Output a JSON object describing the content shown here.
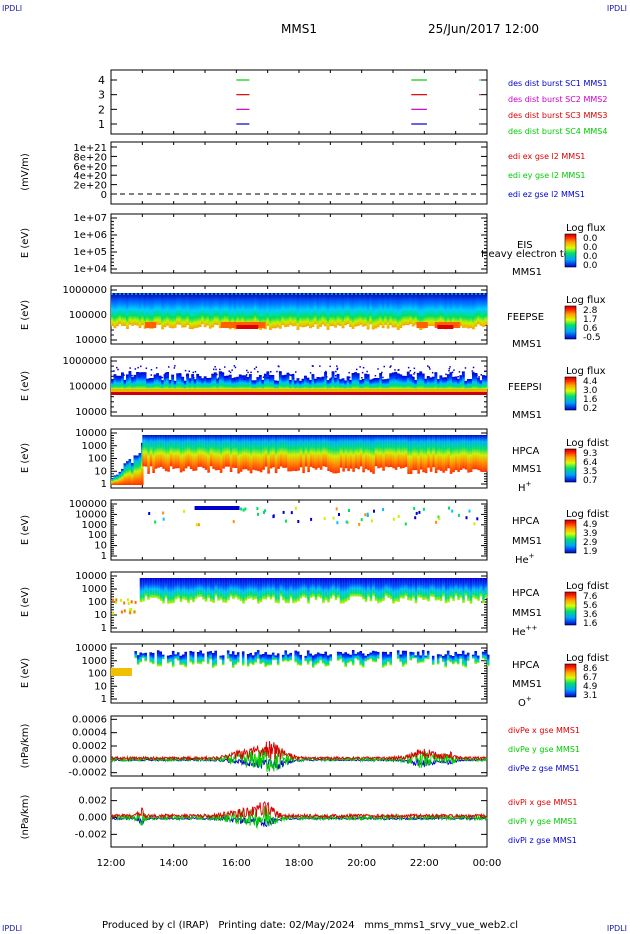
{
  "header": {
    "corner_label": "IPDLI",
    "spacecraft": "MMS1",
    "date_time": "25/Jun/2017 12:00"
  },
  "footer": {
    "text": "Produced by cl (IRAP)   Printing date: 02/May/2024   mms_mms1_srvy_vue_web2.cl"
  },
  "colors": {
    "blue": "#0000cc",
    "magenta": "#cc00cc",
    "red": "#dd0000",
    "green": "#00cc00"
  },
  "chart_data": [
    {
      "type": "line",
      "panel": "burst",
      "yticks": [
        "4",
        "3",
        "2",
        "1"
      ],
      "series": [
        {
          "name": "des dist burst SC1 MMS1",
          "color": "#0000cc",
          "level": 1,
          "intervals": [
            [
              "16:00",
              "16:25"
            ],
            [
              "21:35",
              "22:05"
            ],
            [
              "23:45",
              "23:48"
            ]
          ]
        },
        {
          "name": "des dist burst SC2 MMS2",
          "color": "#cc00cc",
          "level": 2,
          "intervals": [
            [
              "16:00",
              "16:25"
            ],
            [
              "21:35",
              "22:05"
            ],
            [
              "23:45",
              "23:48"
            ]
          ]
        },
        {
          "name": "des dist burst SC3 MMS3",
          "color": "#dd0000",
          "level": 3,
          "intervals": [
            [
              "16:00",
              "16:25"
            ],
            [
              "21:35",
              "22:05"
            ],
            [
              "23:45",
              "23:48"
            ]
          ]
        },
        {
          "name": "des dist burst SC4 MMS4",
          "color": "#00cc00",
          "level": 4,
          "intervals": [
            [
              "16:00",
              "16:25"
            ],
            [
              "21:35",
              "22:05"
            ],
            [
              "23:45",
              "23:48"
            ]
          ]
        }
      ]
    },
    {
      "type": "line",
      "panel": "edi",
      "ylabel": "(mV/m)",
      "yticks": [
        "1e+21",
        "8e+20",
        "6e+20",
        "4e+20",
        "2e+20",
        "0"
      ],
      "series": [
        {
          "name": "edi ex gse l2 MMS1",
          "color": "#dd0000"
        },
        {
          "name": "edi ey gse l2 MMS1",
          "color": "#00cc00"
        },
        {
          "name": "edi ez gse l2 MMS1",
          "color": "#0000cc"
        }
      ]
    },
    {
      "type": "heatmap",
      "panel": "eis",
      "ylabel": "E (eV)",
      "yticks": [
        "1e+07",
        "1e+06",
        "1e+05",
        "1e+04"
      ],
      "labels": [
        "EIS",
        "MMS1"
      ],
      "overlay_text": "Heavy electron tof",
      "colorbar_title": "Log flux",
      "colorbar_ticks": [
        "0.0",
        "0.0",
        "0.0",
        "0.0"
      ]
    },
    {
      "type": "heatmap",
      "panel": "feeps_e",
      "ylabel": "E (eV)",
      "yticks": [
        "1000000",
        "100000",
        "10000"
      ],
      "labels": [
        "FEEPSE",
        "MMS1"
      ],
      "colorbar_title": "Log flux",
      "colorbar_ticks": [
        "2.8",
        "1.7",
        "0.6",
        "-0.5"
      ]
    },
    {
      "type": "heatmap",
      "panel": "feeps_i",
      "ylabel": "E (eV)",
      "yticks": [
        "1000000",
        "100000",
        "10000"
      ],
      "labels": [
        "FEEPSI",
        "MMS1"
      ],
      "colorbar_title": "Log flux",
      "colorbar_ticks": [
        "4.4",
        "3.0",
        "1.6",
        "0.2"
      ]
    },
    {
      "type": "heatmap",
      "panel": "hpca_h",
      "ylabel": "E (eV)",
      "yticks": [
        "10000",
        "1000",
        "100",
        "10",
        "1"
      ],
      "labels": [
        "HPCA",
        "MMS1",
        "H+"
      ],
      "colorbar_title": "Log fdist",
      "colorbar_ticks": [
        "9.3",
        "6.4",
        "3.5",
        "0.7"
      ]
    },
    {
      "type": "heatmap",
      "panel": "hpca_he",
      "ylabel": "E (eV)",
      "yticks": [
        "100000",
        "10000",
        "1000",
        "100",
        "10",
        "1"
      ],
      "labels": [
        "HPCA",
        "MMS1",
        "He+"
      ],
      "colorbar_title": "Log fdist",
      "colorbar_ticks": [
        "4.9",
        "3.9",
        "2.9",
        "1.9"
      ]
    },
    {
      "type": "heatmap",
      "panel": "hpca_hepp",
      "ylabel": "E (eV)",
      "yticks": [
        "10000",
        "1000",
        "100",
        "10",
        "1"
      ],
      "labels": [
        "HPCA",
        "MMS1",
        "He++"
      ],
      "colorbar_title": "Log fdist",
      "colorbar_ticks": [
        "7.6",
        "5.6",
        "3.6",
        "1.6"
      ]
    },
    {
      "type": "heatmap",
      "panel": "hpca_o",
      "ylabel": "E (eV)",
      "yticks": [
        "10000",
        "1000",
        "100",
        "10",
        "1"
      ],
      "labels": [
        "HPCA",
        "MMS1",
        "O+"
      ],
      "colorbar_title": "Log fdist",
      "colorbar_ticks": [
        "8.6",
        "6.7",
        "4.9",
        "3.1"
      ]
    },
    {
      "type": "line",
      "panel": "divpe",
      "ylabel": "(nPa/km)",
      "yticks": [
        "0.0006",
        "0.0004",
        "0.0002",
        "0.0000",
        "-0.0002"
      ],
      "ylim": [
        -0.00025,
        0.00065
      ],
      "series": [
        {
          "name": "divPe x gse MMS1",
          "color": "#dd0000"
        },
        {
          "name": "divPe y gse MMS1",
          "color": "#00cc00"
        },
        {
          "name": "divPe z gse MMS1",
          "color": "#0000cc"
        }
      ]
    },
    {
      "type": "line",
      "panel": "divpi",
      "ylabel": "(nPa/km)",
      "yticks": [
        "0.002",
        "0.000",
        "-0.002"
      ],
      "ylim": [
        -0.0035,
        0.0035
      ],
      "series": [
        {
          "name": "divPi x gse MMS1",
          "color": "#dd0000"
        },
        {
          "name": "divPi y gse MMS1",
          "color": "#00cc00"
        },
        {
          "name": "divPi z gse MMS1",
          "color": "#0000cc"
        }
      ]
    }
  ],
  "x_axis": {
    "range": [
      "12:00",
      "00:00"
    ],
    "ticks": [
      "12:00",
      "14:00",
      "16:00",
      "18:00",
      "20:00",
      "22:00",
      "00:00"
    ]
  }
}
